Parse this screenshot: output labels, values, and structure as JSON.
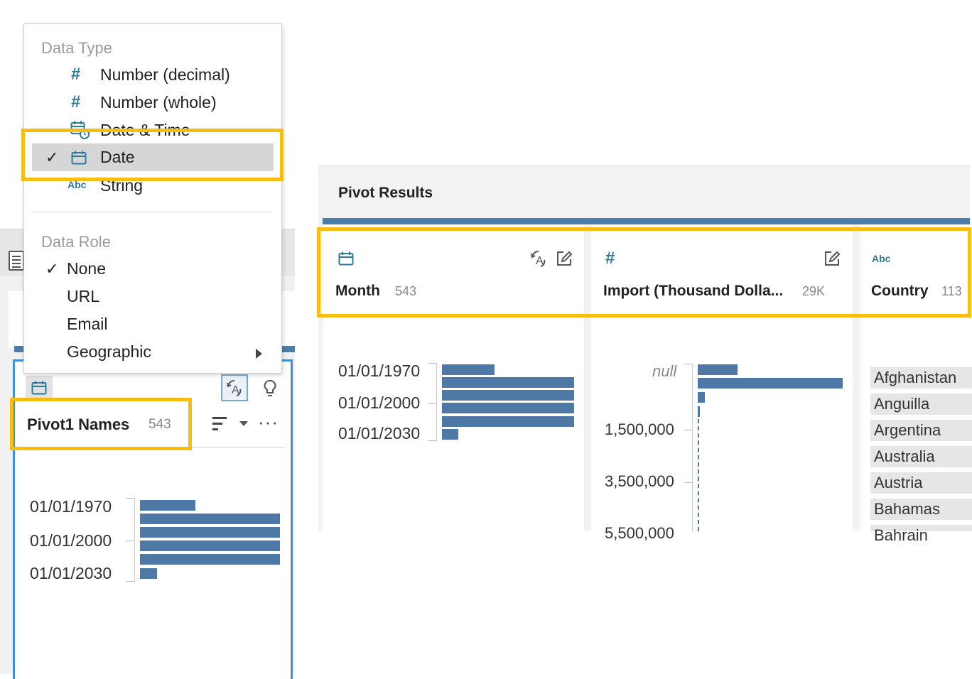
{
  "colors": {
    "accent_blue": "#4e79a7",
    "highlight": "#f7bd12",
    "icon_teal": "#2f7a9c",
    "selected_border": "#3d8fd6"
  },
  "menu": {
    "data_type_header": "Data Type",
    "data_type_items": [
      {
        "label": "Number (decimal)",
        "icon": "hash-icon",
        "checked": false
      },
      {
        "label": "Number (whole)",
        "icon": "hash-icon",
        "checked": false
      },
      {
        "label": "Date & Time",
        "icon": "calendar-clock-icon",
        "checked": false
      },
      {
        "label": "Date",
        "icon": "calendar-icon",
        "checked": true
      },
      {
        "label": "String",
        "icon": "abc-icon",
        "checked": false
      }
    ],
    "data_role_header": "Data Role",
    "data_role_items": [
      {
        "label": "None",
        "checked": true
      },
      {
        "label": "URL",
        "checked": false
      },
      {
        "label": "Email",
        "checked": false
      },
      {
        "label": "Geographic",
        "checked": false,
        "has_submenu": true
      }
    ],
    "check_mark": "✓"
  },
  "pivot1": {
    "name": "Pivot1 Names",
    "count": "543",
    "more": "···",
    "labels": [
      "01/01/1970",
      "01/01/2000",
      "01/01/2030"
    ]
  },
  "pivot_results": {
    "title": "Pivot Results",
    "columns": [
      {
        "name": "Month",
        "count": "543",
        "type_icon": "calendar-icon",
        "labels": [
          "01/01/1970",
          "01/01/2000",
          "01/01/2030"
        ]
      },
      {
        "name": "Import (Thousand Dolla...",
        "count": "29K",
        "type_icon": "hash-icon",
        "null_label": "null",
        "labels": [
          "1,500,000",
          "3,500,000",
          "5,500,000"
        ]
      },
      {
        "name": "Country",
        "count": "113",
        "type_icon": "abc-icon",
        "values": [
          "Afghanistan",
          "Anguilla",
          "Argentina",
          "Australia",
          "Austria",
          "Bahamas",
          "Bahrain"
        ]
      }
    ]
  },
  "icons": {
    "hash": "#",
    "abc": "Abc"
  }
}
